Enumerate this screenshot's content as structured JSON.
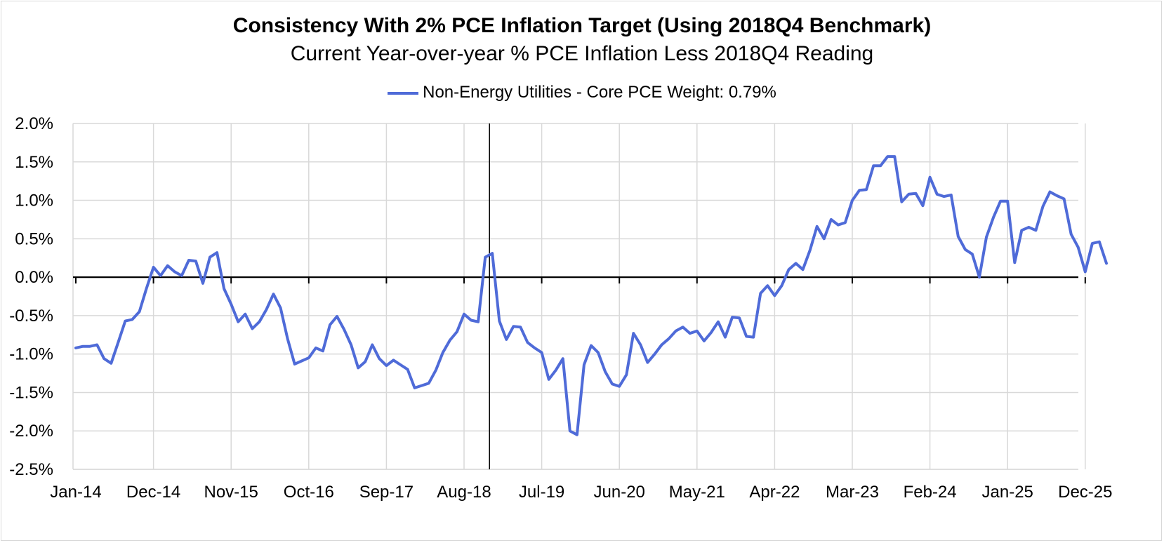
{
  "title": "Consistency With 2% PCE Inflation Target (Using 2018Q4 Benchmark)",
  "subtitle": "Current Year-over-year % PCE Inflation Less 2018Q4 Reading",
  "colors": {
    "series": "#4f6bd8",
    "grid": "#d9d9d9",
    "axis": "#000000"
  },
  "chart_data": {
    "type": "line",
    "title": "Consistency With 2% PCE Inflation Target (Using 2018Q4 Benchmark)",
    "subtitle": "Current Year-over-year % PCE Inflation Less 2018Q4 Reading",
    "xlabel": "",
    "ylabel": "",
    "ylim": [
      -2.5,
      2.0
    ],
    "yticks": [
      2.0,
      1.5,
      1.0,
      0.5,
      0.0,
      -0.5,
      -1.0,
      -1.5,
      -2.0,
      -2.5
    ],
    "ytick_labels": [
      "2.0%",
      "1.5%",
      "1.0%",
      "0.5%",
      "0.0%",
      "-0.5%",
      "-1.0%",
      "-1.5%",
      "-2.0%",
      "-2.5%"
    ],
    "xtick_labels": [
      "Jan-14",
      "Dec-14",
      "Nov-15",
      "Oct-16",
      "Sep-17",
      "Aug-18",
      "Jul-19",
      "Jun-20",
      "May-21",
      "Apr-22",
      "Mar-23",
      "Feb-24",
      "Jan-25",
      "Dec-25"
    ],
    "x_start": "Jan-14",
    "reference_line": "Dec-18",
    "grid": true,
    "legend_position": "top-center",
    "series": [
      {
        "name": "Non-Energy Utilities - Core PCE Weight: 0.79%",
        "values": [
          -0.92,
          -0.9,
          -0.9,
          -0.88,
          -1.06,
          -1.12,
          -0.85,
          -0.57,
          -0.55,
          -0.45,
          -0.15,
          0.13,
          0.02,
          0.15,
          0.07,
          0.02,
          0.22,
          0.21,
          -0.08,
          0.26,
          0.32,
          -0.15,
          -0.35,
          -0.58,
          -0.48,
          -0.67,
          -0.58,
          -0.42,
          -0.22,
          -0.4,
          -0.8,
          -1.13,
          -1.09,
          -1.05,
          -0.92,
          -0.96,
          -0.62,
          -0.51,
          -0.68,
          -0.88,
          -1.18,
          -1.1,
          -0.88,
          -1.06,
          -1.15,
          -1.08,
          -1.14,
          -1.2,
          -1.44,
          -1.41,
          -1.38,
          -1.21,
          -0.98,
          -0.82,
          -0.71,
          -0.48,
          -0.56,
          -0.58,
          0.26,
          0.31,
          -0.57,
          -0.81,
          -0.64,
          -0.65,
          -0.85,
          -0.92,
          -0.98,
          -1.33,
          -1.21,
          -1.06,
          -2.0,
          -2.05,
          -1.14,
          -0.89,
          -0.98,
          -1.23,
          -1.39,
          -1.42,
          -1.27,
          -0.73,
          -0.88,
          -1.11,
          -1.0,
          -0.88,
          -0.8,
          -0.7,
          -0.65,
          -0.73,
          -0.7,
          -0.83,
          -0.72,
          -0.58,
          -0.78,
          -0.52,
          -0.53,
          -0.77,
          -0.78,
          -0.21,
          -0.11,
          -0.24,
          -0.11,
          0.1,
          0.18,
          0.1,
          0.35,
          0.66,
          0.5,
          0.75,
          0.68,
          0.71,
          1.0,
          1.13,
          1.14,
          1.45,
          1.45,
          1.57,
          1.57,
          0.98,
          1.08,
          1.09,
          0.93,
          1.3,
          1.08,
          1.05,
          1.07,
          0.53,
          0.36,
          0.3,
          0.0,
          0.52,
          0.78,
          0.99,
          0.99,
          0.19,
          0.61,
          0.65,
          0.61,
          0.92,
          1.11,
          1.06,
          1.02,
          0.56,
          0.39,
          0.07,
          0.44,
          0.46,
          0.18
        ]
      }
    ]
  }
}
